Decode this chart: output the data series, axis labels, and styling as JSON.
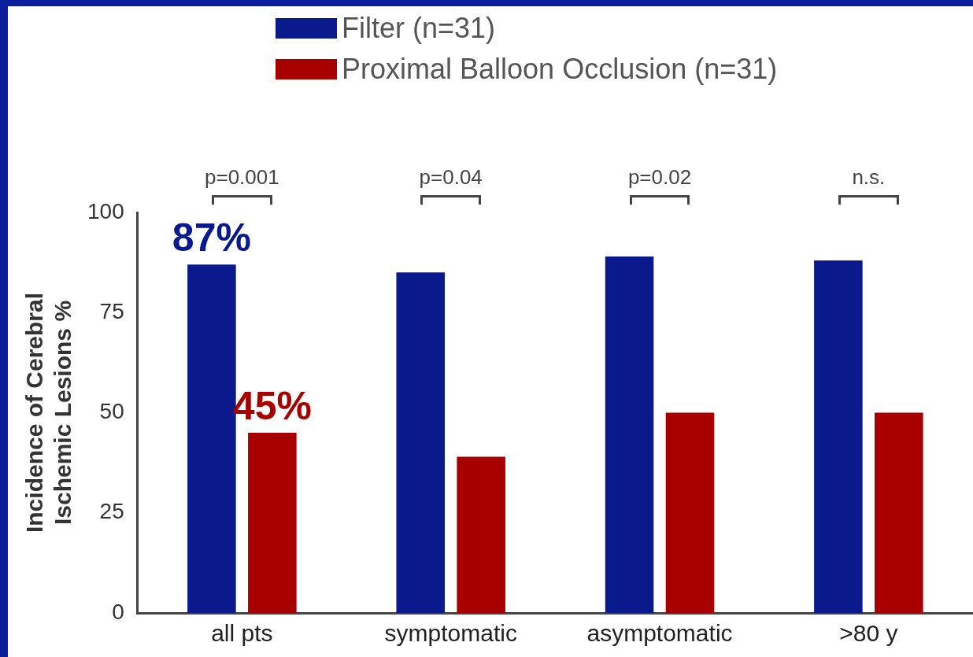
{
  "chart_data": {
    "type": "bar",
    "ylabel": "Incidence of Cerebral\nIschemic Lesions %",
    "categories": [
      "all pts",
      "symptomatic",
      "asymptomatic",
      ">80 y"
    ],
    "series": [
      {
        "name": "Filter (n=31)",
        "color": "#0a1a8c",
        "values": [
          87,
          85,
          89,
          88
        ],
        "value_labels": [
          "87%",
          null,
          null,
          null
        ]
      },
      {
        "name": "Proximal Balloon Occlusion (n=31)",
        "color": "#a80000",
        "values": [
          45,
          39,
          50,
          50
        ],
        "value_labels": [
          "45%",
          null,
          null,
          null
        ]
      }
    ],
    "annotations": [
      "p=0.001",
      "p=0.04",
      "p=0.02",
      "n.s."
    ],
    "ylim": [
      0,
      100
    ],
    "yticks": [
      0,
      25,
      50,
      75,
      100
    ],
    "grid": false,
    "legend": "top"
  }
}
